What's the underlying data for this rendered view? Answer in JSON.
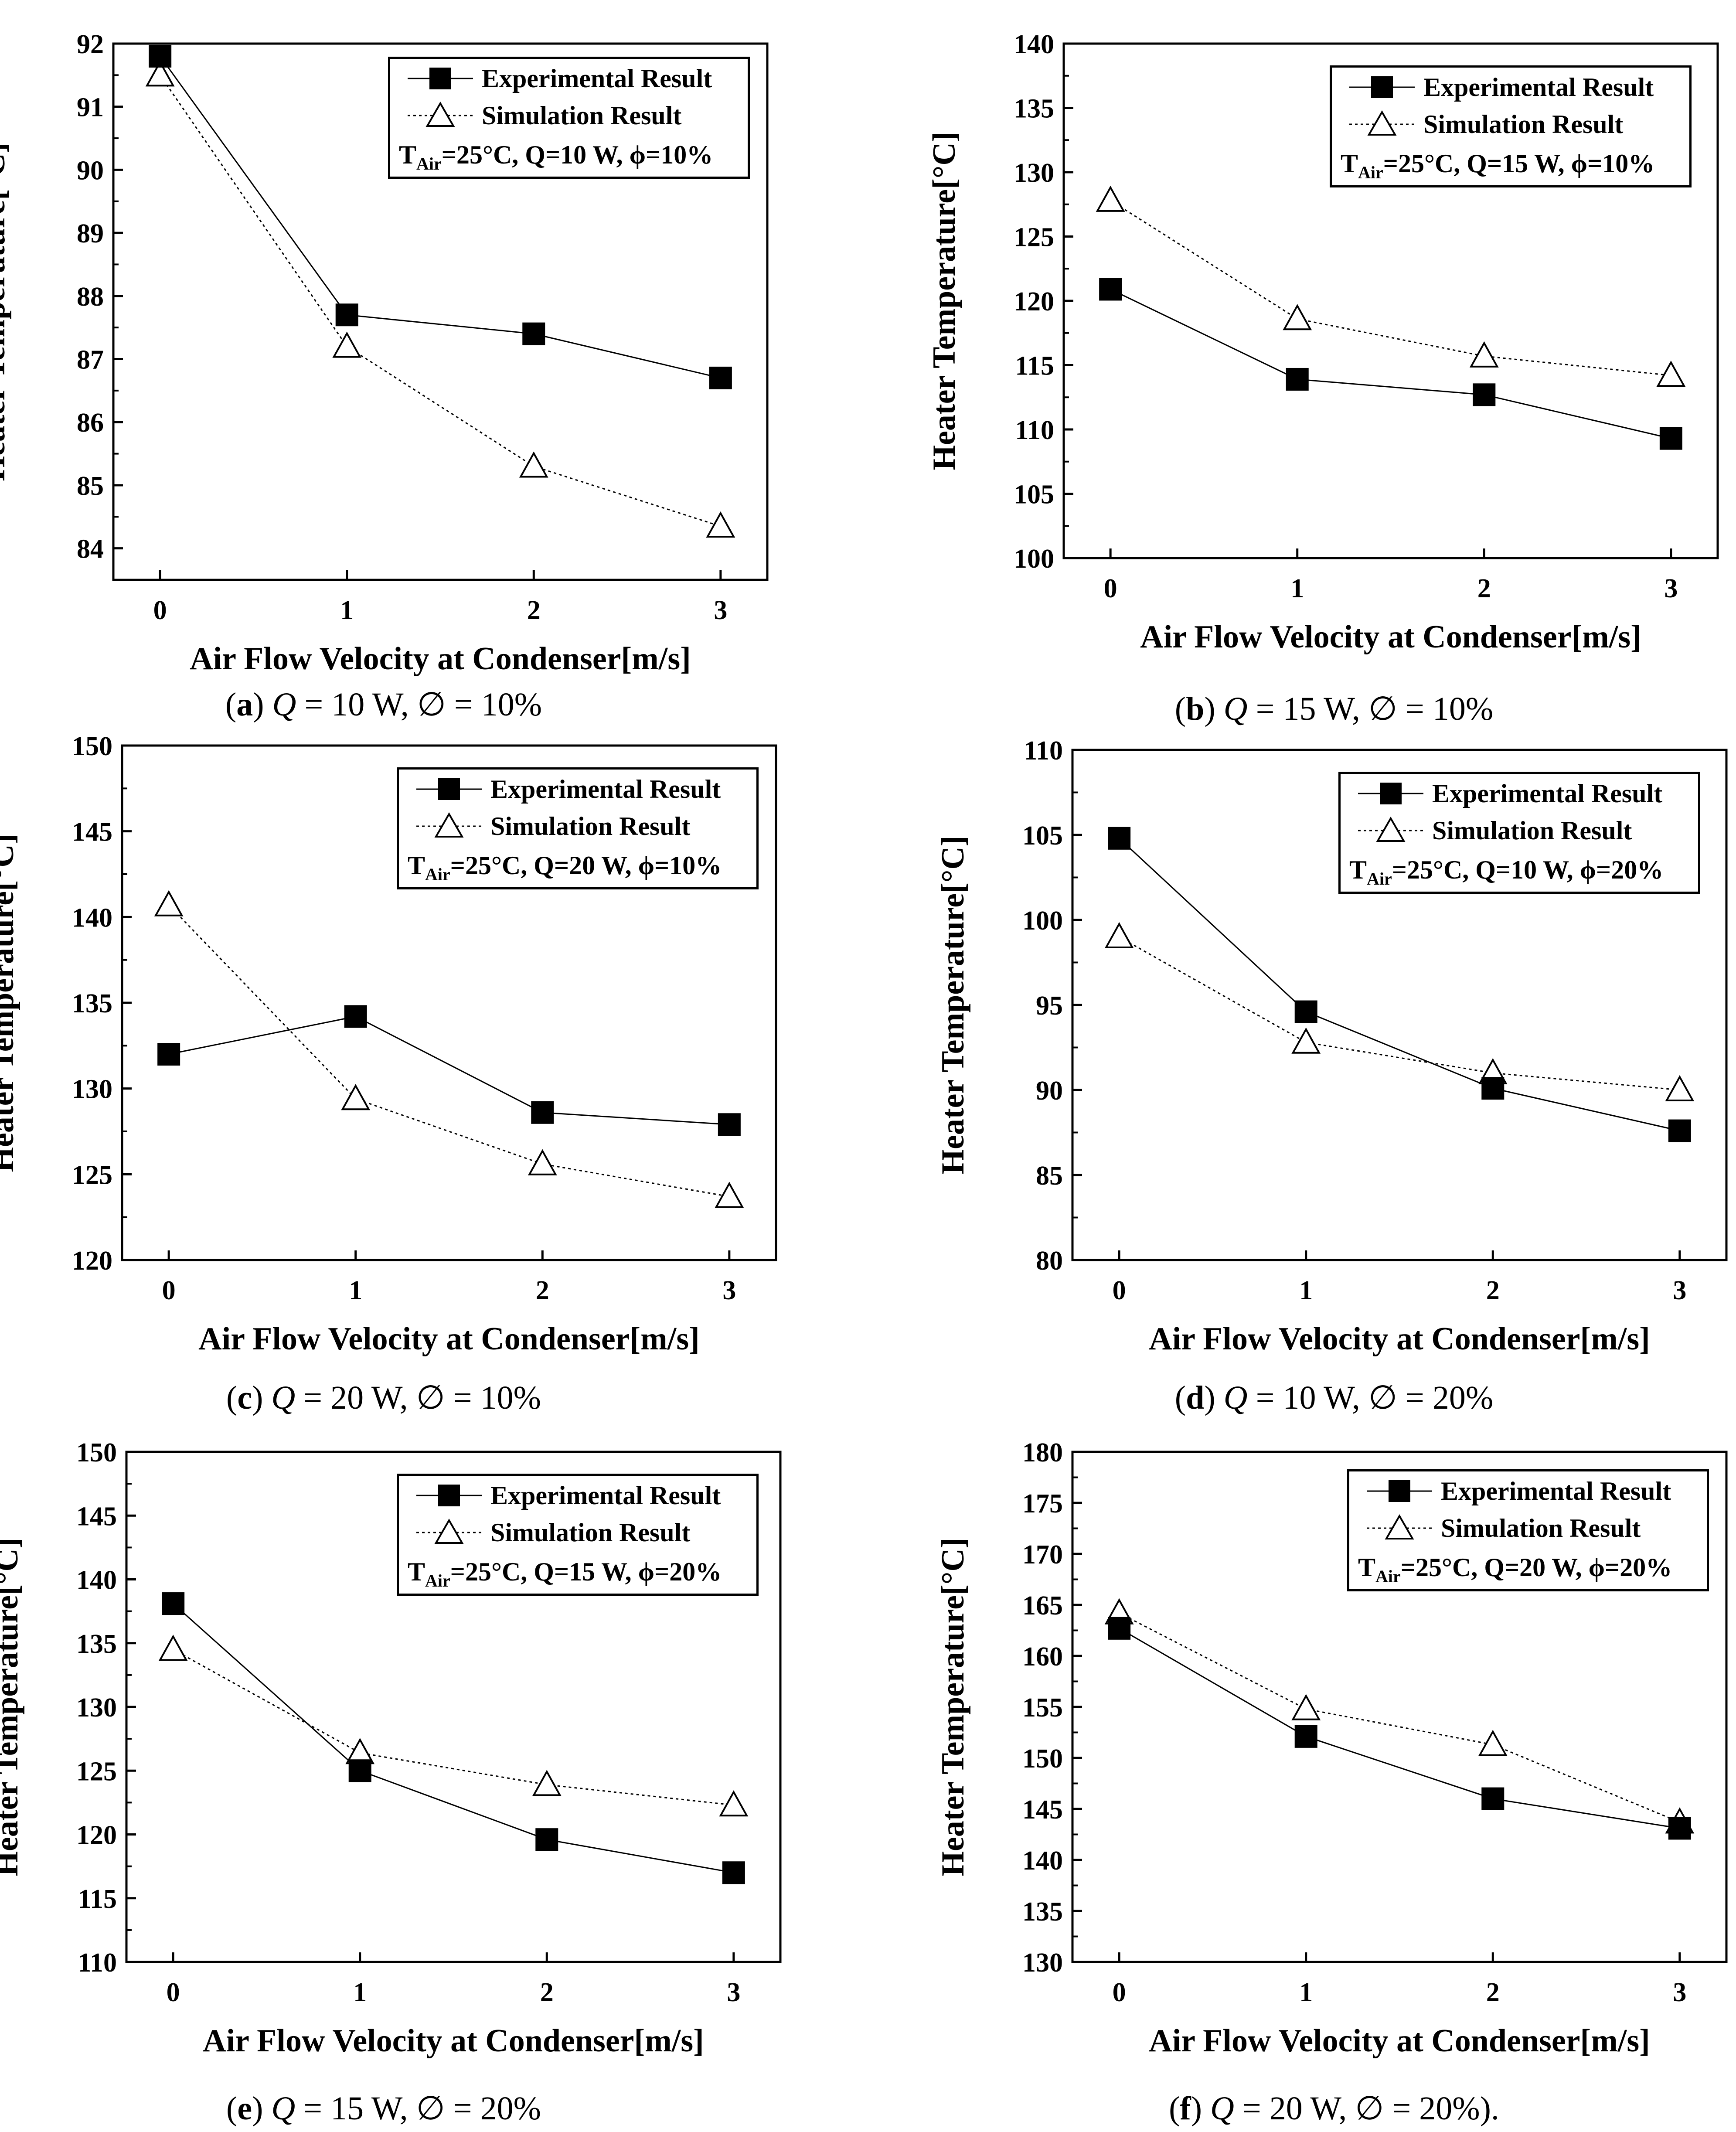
{
  "legend": {
    "experimental": "Experimental Result",
    "simulation": "Simulation Result",
    "cond_prefix": "T",
    "cond_sub": "Air"
  },
  "axes": {
    "xlabel": "Air Flow Velocity at Condenser[m/s]",
    "ylabel": "Heater Temperature[°C]"
  },
  "colors": {
    "line": "#000000",
    "experimental_marker": "#000000",
    "simulation_marker": "#ffffff"
  },
  "chart_data": [
    {
      "id": "a",
      "type": "line",
      "x": [
        0,
        1,
        2,
        3
      ],
      "ylim": [
        83.5,
        92
      ],
      "yticks": [
        84,
        85,
        86,
        87,
        88,
        89,
        90,
        91,
        92
      ],
      "series": [
        {
          "name": "Experimental Result",
          "values": [
            91.8,
            87.7,
            87.4,
            86.7
          ]
        },
        {
          "name": "Simulation Result",
          "values": [
            91.5,
            87.2,
            85.3,
            84.35
          ]
        }
      ],
      "condition": "=25°C, Q=10 W, ϕ=10%",
      "caption": {
        "letter": "a",
        "q": "10 W",
        "phi": "10%",
        "suffix": ""
      }
    },
    {
      "id": "b",
      "type": "line",
      "x": [
        0,
        1,
        2,
        3
      ],
      "ylim": [
        100,
        140
      ],
      "yticks": [
        100,
        105,
        110,
        115,
        120,
        125,
        130,
        135,
        140
      ],
      "series": [
        {
          "name": "Experimental Result",
          "values": [
            120.9,
            113.9,
            112.7,
            109.3
          ]
        },
        {
          "name": "Simulation Result",
          "values": [
            127.8,
            118.6,
            115.7,
            114.2
          ]
        }
      ],
      "condition": "=25°C, Q=15 W, ϕ=10%",
      "caption": {
        "letter": "b",
        "q": "15 W",
        "phi": "10%",
        "suffix": ""
      }
    },
    {
      "id": "c",
      "type": "line",
      "x": [
        0,
        1,
        2,
        3
      ],
      "ylim": [
        120,
        150
      ],
      "yticks": [
        120,
        125,
        130,
        135,
        140,
        145,
        150
      ],
      "series": [
        {
          "name": "Experimental Result",
          "values": [
            132.0,
            134.2,
            128.6,
            127.9
          ]
        },
        {
          "name": "Simulation Result",
          "values": [
            140.7,
            129.4,
            125.6,
            123.7
          ]
        }
      ],
      "condition": "=25°C, Q=20 W, ϕ=10%",
      "caption": {
        "letter": "c",
        "q": "20 W",
        "phi": "10%",
        "suffix": ""
      }
    },
    {
      "id": "d",
      "type": "line",
      "x": [
        0,
        1,
        2,
        3
      ],
      "ylim": [
        80,
        110
      ],
      "yticks": [
        80,
        85,
        90,
        95,
        100,
        105,
        110
      ],
      "series": [
        {
          "name": "Experimental Result",
          "values": [
            104.8,
            94.6,
            90.1,
            87.6
          ]
        },
        {
          "name": "Simulation Result",
          "values": [
            99.0,
            92.8,
            91.0,
            90.0
          ]
        }
      ],
      "condition": "=25°C, Q=10 W, ϕ=20%",
      "caption": {
        "letter": "d",
        "q": "10 W",
        "phi": "20%",
        "suffix": ""
      }
    },
    {
      "id": "e",
      "type": "line",
      "x": [
        0,
        1,
        2,
        3
      ],
      "ylim": [
        110,
        150
      ],
      "yticks": [
        110,
        115,
        120,
        125,
        130,
        135,
        140,
        145,
        150
      ],
      "series": [
        {
          "name": "Experimental Result",
          "values": [
            138.1,
            125.0,
            119.6,
            117.0
          ]
        },
        {
          "name": "Simulation Result",
          "values": [
            134.5,
            126.4,
            123.9,
            122.3
          ]
        }
      ],
      "condition": "=25°C, Q=15 W, ϕ=20%",
      "caption": {
        "letter": "e",
        "q": "15 W",
        "phi": "20%",
        "suffix": ""
      }
    },
    {
      "id": "f",
      "type": "line",
      "x": [
        0,
        1,
        2,
        3
      ],
      "ylim": [
        130,
        180
      ],
      "yticks": [
        130,
        135,
        140,
        145,
        150,
        155,
        160,
        165,
        170,
        175,
        180
      ],
      "series": [
        {
          "name": "Experimental Result",
          "values": [
            162.7,
            152.1,
            146.0,
            143.1
          ]
        },
        {
          "name": "Simulation Result",
          "values": [
            164.2,
            154.8,
            151.3,
            143.7
          ]
        }
      ],
      "condition": "=25°C, Q=20 W, ϕ=20%",
      "caption": {
        "letter": "f",
        "q": "20 W",
        "phi": "20%",
        "suffix": ")."
      }
    }
  ]
}
